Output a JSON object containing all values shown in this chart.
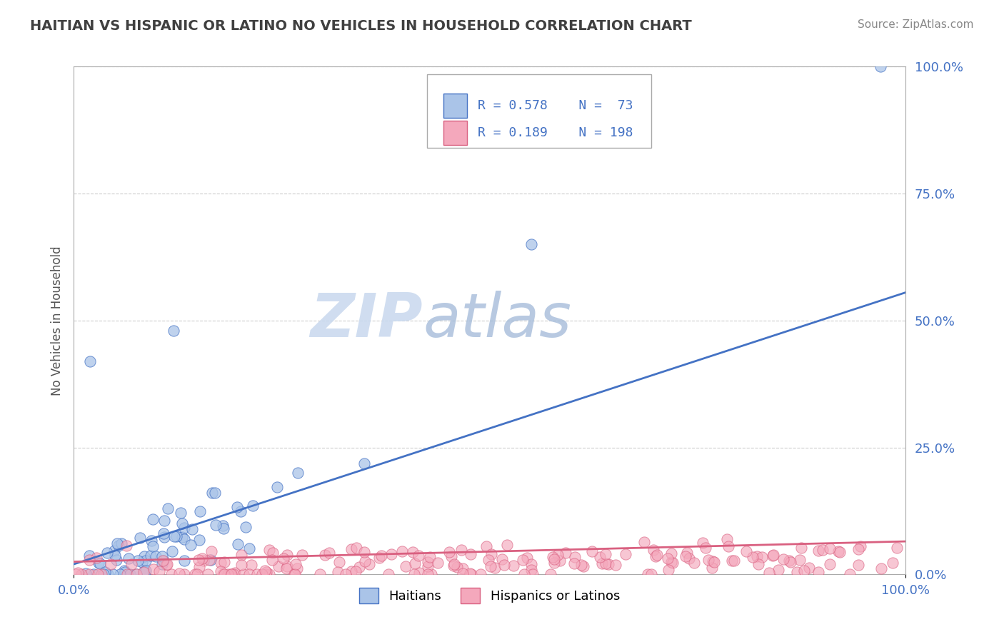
{
  "title": "HAITIAN VS HISPANIC OR LATINO NO VEHICLES IN HOUSEHOLD CORRELATION CHART",
  "source": "Source: ZipAtlas.com",
  "ylabel": "No Vehicles in Household",
  "xlim": [
    0,
    1
  ],
  "ylim": [
    0,
    1
  ],
  "x_tick_labels": [
    "0.0%",
    "100.0%"
  ],
  "y_tick_labels": [
    "0.0%",
    "25.0%",
    "50.0%",
    "75.0%",
    "100.0%"
  ],
  "y_tick_values": [
    0.0,
    0.25,
    0.5,
    0.75,
    1.0
  ],
  "haitian_R": 0.578,
  "haitian_N": 73,
  "hispanic_R": 0.189,
  "hispanic_N": 198,
  "haitian_color": "#aac4e8",
  "hispanic_color": "#f4a8bc",
  "haitian_line_color": "#4472c4",
  "hispanic_line_color": "#d96080",
  "background_color": "#ffffff",
  "watermark_zip": "ZIP",
  "watermark_atlas": "atlas",
  "legend_text_color": "#4472c4",
  "title_color": "#404040",
  "axis_label_color": "#555555",
  "tick_label_color": "#4472c4",
  "grid_color": "#cccccc",
  "haitian_line_start_y": 0.02,
  "haitian_line_end_y": 0.555,
  "hispanic_line_start_y": 0.025,
  "hispanic_line_end_y": 0.065
}
